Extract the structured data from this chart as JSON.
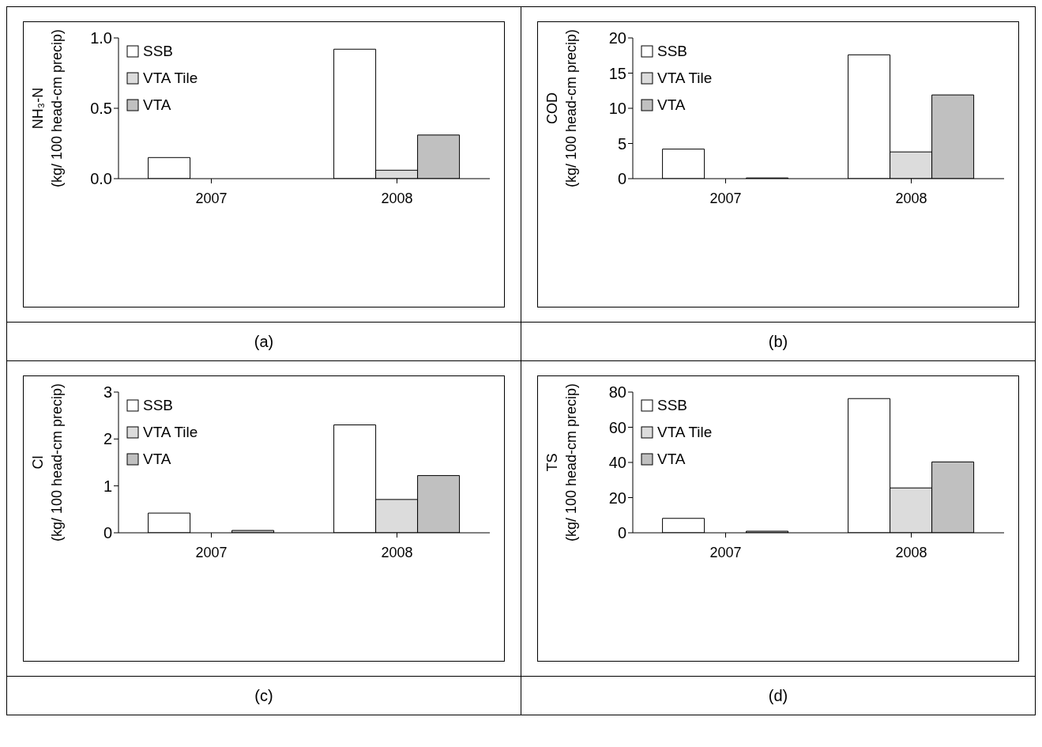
{
  "chart_data": [
    {
      "type": "bar",
      "ylabel": "NH₃-N\n(kg/ 100 head-cm precip)",
      "categories": [
        "2007",
        "2008"
      ],
      "series": [
        {
          "name": "SSB",
          "color": "#ffffff",
          "values": [
            0.15,
            0.92
          ]
        },
        {
          "name": "VTA Tile",
          "color": "#dcdcdc",
          "values": [
            null,
            0.06
          ]
        },
        {
          "name": "VTA",
          "color": "#c0c0c0",
          "values": [
            null,
            0.31
          ]
        }
      ],
      "ylim": [
        0,
        1
      ],
      "yticks": [
        {
          "value": 0,
          "label": "0.0"
        },
        {
          "value": 0.5,
          "label": "0.5"
        },
        {
          "value": 1,
          "label": "1.0"
        }
      ],
      "legend": "top left",
      "annotations": [
        "(a)"
      ]
    },
    {
      "type": "bar",
      "ylabel": "COD\n(kg/ 100 head-cm precip)",
      "categories": [
        "2007",
        "2008"
      ],
      "series": [
        {
          "name": "SSB",
          "color": "#ffffff",
          "values": [
            4.2,
            17.6
          ]
        },
        {
          "name": "VTA Tile",
          "color": "#dcdcdc",
          "values": [
            null,
            3.8
          ]
        },
        {
          "name": "VTA",
          "color": "#c0c0c0",
          "values": [
            0.1,
            11.9
          ]
        }
      ],
      "ylim": [
        0,
        20
      ],
      "yticks": [
        0,
        5,
        10,
        15,
        20
      ],
      "legend": "top left",
      "annotations": [
        "(b)"
      ]
    },
    {
      "type": "bar",
      "ylabel": "Cl\n(kg/ 100 head-cm precip)",
      "categories": [
        "2007",
        "2008"
      ],
      "series": [
        {
          "name": "SSB",
          "color": "#ffffff",
          "values": [
            0.42,
            2.3
          ]
        },
        {
          "name": "VTA Tile",
          "color": "#dcdcdc",
          "values": [
            null,
            0.71
          ]
        },
        {
          "name": "VTA",
          "color": "#c0c0c0",
          "values": [
            0.05,
            1.22
          ]
        }
      ],
      "ylim": [
        0,
        3
      ],
      "yticks": [
        0,
        1,
        2,
        3
      ],
      "legend": "top left",
      "annotations": [
        "(c)"
      ]
    },
    {
      "type": "bar",
      "ylabel": "TS\n(kg/ 100 head-cm precip)",
      "categories": [
        "2007",
        "2008"
      ],
      "series": [
        {
          "name": "SSB",
          "color": "#ffffff",
          "values": [
            8.2,
            76.3
          ]
        },
        {
          "name": "VTA Tile",
          "color": "#dcdcdc",
          "values": [
            null,
            25.5
          ]
        },
        {
          "name": "VTA",
          "color": "#c0c0c0",
          "values": [
            0.9,
            40.3
          ]
        }
      ],
      "ylim": [
        0,
        80
      ],
      "yticks": [
        0,
        20,
        40,
        60,
        80
      ],
      "legend": "top left",
      "annotations": [
        "(d)"
      ]
    }
  ]
}
